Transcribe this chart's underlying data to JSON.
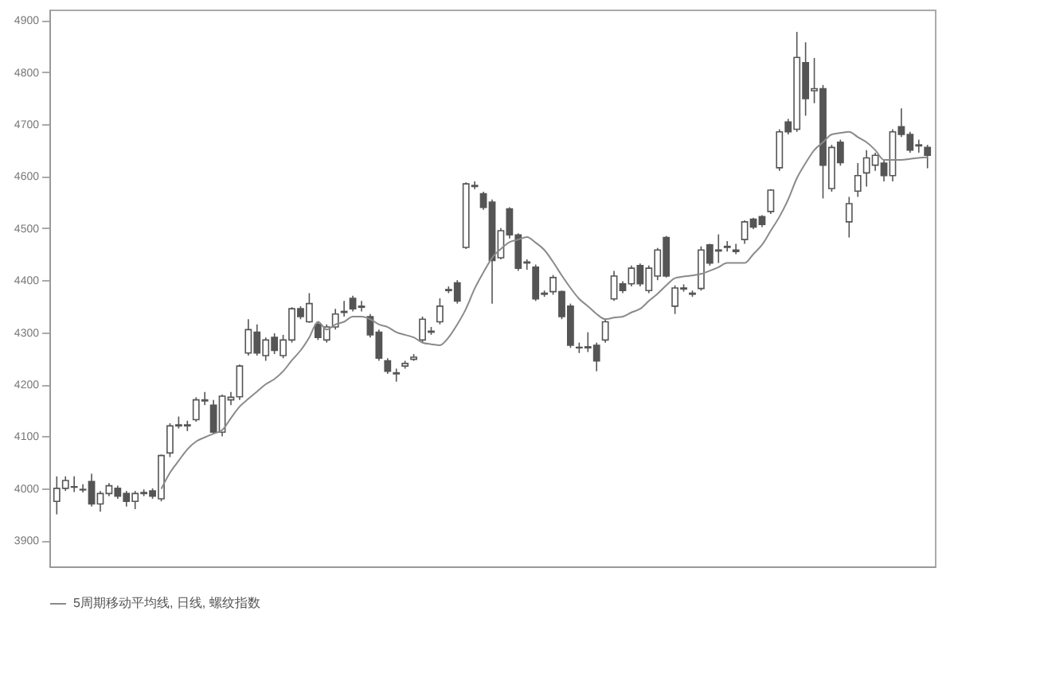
{
  "chart_data": {
    "type": "candlestick",
    "categories": [
      null,
      null,
      null,
      null,
      null,
      null,
      null,
      null,
      null,
      null,
      null,
      null,
      null,
      null,
      null,
      null,
      null,
      null,
      null,
      null,
      null,
      null,
      null,
      null,
      null,
      null,
      null,
      null,
      null,
      null,
      null,
      null,
      null,
      null,
      null,
      null,
      null,
      null,
      null,
      null,
      null,
      null,
      null,
      null,
      null,
      null,
      null,
      null,
      null,
      null,
      null,
      null,
      null,
      null,
      null,
      null,
      null,
      null,
      null,
      null,
      null,
      null,
      null,
      null,
      null,
      null,
      null,
      null,
      null,
      null,
      null,
      null,
      null,
      null,
      null,
      null,
      null,
      null,
      null,
      null,
      null,
      null,
      null,
      null,
      null,
      null,
      null,
      null,
      null,
      null,
      null,
      null,
      null,
      null,
      null,
      null,
      null,
      null,
      null,
      null,
      null
    ],
    "ohlc": [
      [
        3975,
        4023,
        3950,
        4000
      ],
      [
        4000,
        4023,
        3995,
        4015
      ],
      [
        4003,
        4023,
        3993,
        4002
      ],
      [
        3998,
        4008,
        3992,
        3997
      ],
      [
        4013,
        4028,
        3965,
        3970
      ],
      [
        3970,
        3995,
        3955,
        3990
      ],
      [
        3990,
        4010,
        3985,
        4005
      ],
      [
        4000,
        4005,
        3980,
        3985
      ],
      [
        3990,
        3995,
        3965,
        3975
      ],
      [
        3975,
        3995,
        3960,
        3990
      ],
      [
        3990,
        3998,
        3985,
        3992
      ],
      [
        3995,
        4000,
        3980,
        3985
      ],
      [
        3980,
        4065,
        3975,
        4063
      ],
      [
        4068,
        4125,
        4060,
        4120
      ],
      [
        4120,
        4138,
        4115,
        4122
      ],
      [
        4122,
        4130,
        4110,
        4120
      ],
      [
        4132,
        4175,
        4128,
        4170
      ],
      [
        4170,
        4185,
        4160,
        4168
      ],
      [
        4160,
        4170,
        4105,
        4108
      ],
      [
        4108,
        4180,
        4100,
        4177
      ],
      [
        4170,
        4185,
        4160,
        4175
      ],
      [
        4176,
        4238,
        4170,
        4235
      ],
      [
        4260,
        4325,
        4255,
        4305
      ],
      [
        4300,
        4315,
        4255,
        4260
      ],
      [
        4255,
        4290,
        4245,
        4285
      ],
      [
        4290,
        4298,
        4258,
        4265
      ],
      [
        4255,
        4295,
        4250,
        4285
      ],
      [
        4285,
        4348,
        4280,
        4345
      ],
      [
        4345,
        4350,
        4325,
        4330
      ],
      [
        4320,
        4375,
        4318,
        4355
      ],
      [
        4315,
        4320,
        4285,
        4290
      ],
      [
        4285,
        4315,
        4280,
        4310
      ],
      [
        4310,
        4345,
        4305,
        4335
      ],
      [
        4338,
        4360,
        4330,
        4340
      ],
      [
        4365,
        4370,
        4340,
        4345
      ],
      [
        4350,
        4360,
        4340,
        4348
      ],
      [
        4330,
        4335,
        4290,
        4295
      ],
      [
        4300,
        4305,
        4245,
        4250
      ],
      [
        4245,
        4250,
        4220,
        4225
      ],
      [
        4220,
        4230,
        4205,
        4222
      ],
      [
        4235,
        4245,
        4230,
        4240
      ],
      [
        4248,
        4258,
        4245,
        4252
      ],
      [
        4285,
        4330,
        4280,
        4325
      ],
      [
        4300,
        4310,
        4295,
        4302
      ],
      [
        4320,
        4365,
        4315,
        4350
      ],
      [
        4380,
        4388,
        4375,
        4382
      ],
      [
        4395,
        4400,
        4355,
        4360
      ],
      [
        4463,
        4588,
        4460,
        4585
      ],
      [
        4580,
        4590,
        4575,
        4582
      ],
      [
        4566,
        4570,
        4535,
        4540
      ],
      [
        4550,
        4555,
        4355,
        4438
      ],
      [
        4443,
        4500,
        4440,
        4495
      ],
      [
        4537,
        4540,
        4480,
        4487
      ],
      [
        4487,
        4490,
        4418,
        4423
      ],
      [
        4433,
        4440,
        4420,
        4435
      ],
      [
        4425,
        4430,
        4360,
        4364
      ],
      [
        4375,
        4380,
        4368,
        4373
      ],
      [
        4378,
        4410,
        4372,
        4405
      ],
      [
        4378,
        4380,
        4325,
        4330
      ],
      [
        4350,
        4355,
        4270,
        4275
      ],
      [
        4270,
        4280,
        4260,
        4271
      ],
      [
        4272,
        4300,
        4262,
        4270
      ],
      [
        4275,
        4280,
        4225,
        4245
      ],
      [
        4285,
        4325,
        4280,
        4320
      ],
      [
        4364,
        4418,
        4360,
        4408
      ],
      [
        4393,
        4398,
        4375,
        4380
      ],
      [
        4393,
        4428,
        4388,
        4423
      ],
      [
        4428,
        4432,
        4388,
        4393
      ],
      [
        4380,
        4428,
        4375,
        4423
      ],
      [
        4408,
        4462,
        4400,
        4458
      ],
      [
        4482,
        4485,
        4405,
        4408
      ],
      [
        4350,
        4390,
        4335,
        4385
      ],
      [
        4383,
        4392,
        4378,
        4385
      ],
      [
        4373,
        4380,
        4368,
        4375
      ],
      [
        4384,
        4465,
        4380,
        4458
      ],
      [
        4468,
        4470,
        4428,
        4433
      ],
      [
        4458,
        4488,
        4433,
        4456
      ],
      [
        4465,
        4475,
        4455,
        4463
      ],
      [
        4458,
        4470,
        4450,
        4455
      ],
      [
        4478,
        4515,
        4470,
        4512
      ],
      [
        4517,
        4520,
        4498,
        4502
      ],
      [
        4522,
        4525,
        4502,
        4507
      ],
      [
        4532,
        4575,
        4527,
        4573
      ],
      [
        4616,
        4690,
        4610,
        4685
      ],
      [
        4704,
        4710,
        4680,
        4685
      ],
      [
        4690,
        4877,
        4685,
        4828
      ],
      [
        4818,
        4857,
        4716,
        4749
      ],
      [
        4764,
        4827,
        4740,
        4768
      ],
      [
        4768,
        4775,
        4557,
        4621
      ],
      [
        4576,
        4660,
        4570,
        4655
      ],
      [
        4665,
        4670,
        4620,
        4626
      ],
      [
        4512,
        4560,
        4482,
        4547
      ],
      [
        4571,
        4625,
        4560,
        4601
      ],
      [
        4606,
        4650,
        4580,
        4635
      ],
      [
        4621,
        4645,
        4610,
        4640
      ],
      [
        4625,
        4630,
        4590,
        4601
      ],
      [
        4601,
        4690,
        4590,
        4685
      ],
      [
        4695,
        4730,
        4675,
        4680
      ],
      [
        4680,
        4685,
        4645,
        4650
      ],
      [
        4660,
        4670,
        4645,
        4658
      ],
      [
        4655,
        4660,
        4615,
        4640
      ]
    ],
    "series": [
      {
        "name": "5周期移动平均线, 日线, 螺纹指数",
        "type": "line",
        "color": "#8a8a8a",
        "values": [
          null,
          null,
          null,
          null,
          null,
          null,
          null,
          null,
          null,
          null,
          null,
          null,
          3999,
          4030,
          4053,
          4075,
          4090,
          4098,
          4105,
          4112,
          4135,
          4157,
          4172,
          4186,
          4200,
          4210,
          4225,
          4246,
          4265,
          4290,
          4320,
          4305,
          4315,
          4320,
          4330,
          4330,
          4325,
          4315,
          4310,
          4300,
          4295,
          4290,
          4280,
          4277,
          4275,
          4290,
          4315,
          4345,
          4384,
          4415,
          4443,
          4460,
          4473,
          4478,
          4483,
          4472,
          4458,
          4435,
          4409,
          4385,
          4364,
          4350,
          4335,
          4325,
          4328,
          4330,
          4338,
          4345,
          4360,
          4374,
          4390,
          4404,
          4407,
          4409,
          4412,
          4418,
          4425,
          4433,
          4433,
          4433,
          4450,
          4468,
          4495,
          4522,
          4555,
          4596,
          4625,
          4650,
          4665,
          4680,
          4683,
          4685,
          4675,
          4665,
          4650,
          4631,
          4631,
          4631,
          4633,
          4635,
          4636
        ]
      }
    ],
    "ylim": [
      3850,
      4920
    ],
    "yticks": [
      3900,
      4000,
      4100,
      4200,
      4300,
      4400,
      4500,
      4600,
      4700,
      4800,
      4900
    ],
    "tick_labels": "y",
    "legend": "bottom"
  }
}
